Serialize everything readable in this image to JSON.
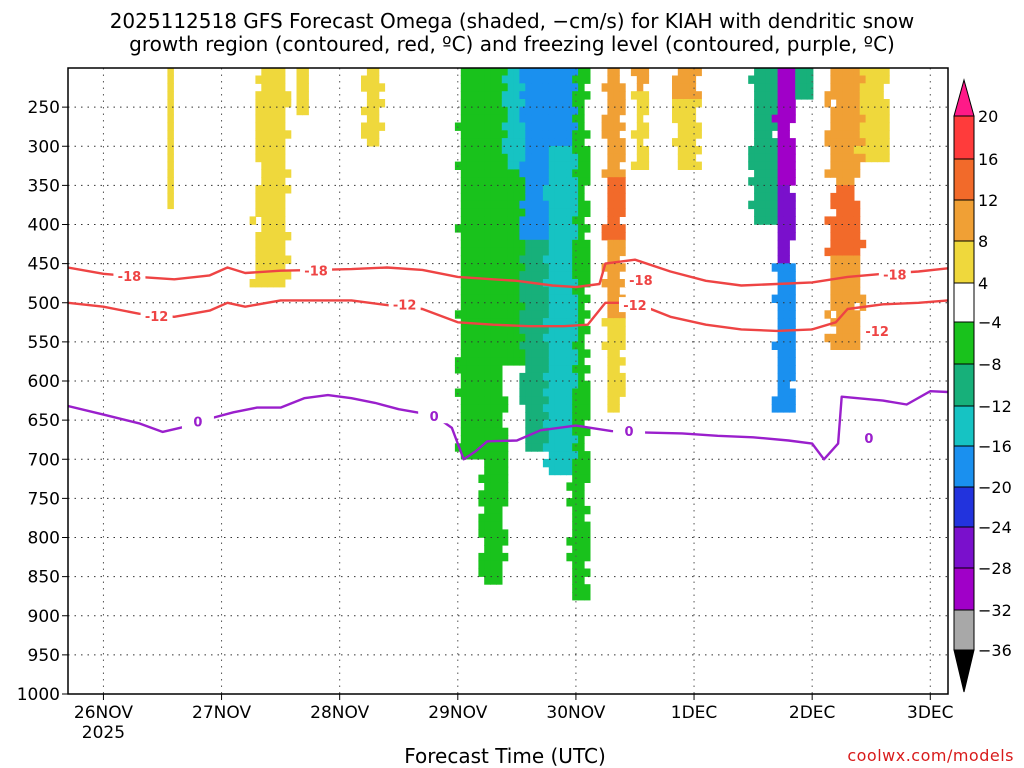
{
  "chart_data": {
    "type": "heatmap",
    "title_line1": "2025112518 GFS Forecast Omega (shaded, −cm/s) for KIAH with dendritic snow",
    "title_line2": "growth region (contoured, red, ºC) and freezing level (contoured, purple, ºC)",
    "xlabel": "Forecast Time (UTC)",
    "credit": "coolwx.com/models",
    "y_axis": {
      "unit": "hPa",
      "reversed": true,
      "range": [
        200,
        1000
      ],
      "ticks": [
        250,
        300,
        350,
        400,
        450,
        500,
        550,
        600,
        650,
        700,
        750,
        800,
        850,
        900,
        950,
        1000
      ]
    },
    "x_axis": {
      "unit": "day",
      "range": [
        -0.3,
        7.15
      ],
      "ticks": [
        {
          "v": 0,
          "label": "26NOV",
          "sub": "2025"
        },
        {
          "v": 1,
          "label": "27NOV"
        },
        {
          "v": 2,
          "label": "28NOV"
        },
        {
          "v": 3,
          "label": "29NOV"
        },
        {
          "v": 4,
          "label": "30NOV"
        },
        {
          "v": 5,
          "label": "1DEC"
        },
        {
          "v": 6,
          "label": "2DEC"
        },
        {
          "v": 7,
          "label": "3DEC"
        }
      ]
    },
    "colorbar": {
      "labels": [
        "20",
        "16",
        "12",
        "8",
        "4",
        "−4",
        "−8",
        "−12",
        "−16",
        "−20",
        "−24",
        "−28",
        "−32",
        "−36"
      ],
      "colors": [
        "#ff1a88",
        "#ff3b3b",
        "#f26a2a",
        "#f0a035",
        "#efd83c",
        "#ffffff",
        "#19c21c",
        "#17b07a",
        "#16c3c3",
        "#1a90ef",
        "#2233dd",
        "#7a10cc",
        "#a000c8",
        "#a8a8a8",
        "#000000"
      ]
    },
    "contour_labels": {
      "dgz_upper": "-18",
      "dgz_lower": "-12",
      "freezing": "0"
    },
    "series": [
      {
        "name": "-18C isotherm",
        "color": "#ee4444",
        "points": [
          [
            -0.3,
            455
          ],
          [
            0,
            463
          ],
          [
            0.3,
            467
          ],
          [
            0.6,
            470
          ],
          [
            0.9,
            465
          ],
          [
            1.05,
            455
          ],
          [
            1.2,
            462
          ],
          [
            1.5,
            459
          ],
          [
            1.8,
            458
          ],
          [
            2.1,
            457
          ],
          [
            2.4,
            455
          ],
          [
            2.7,
            458
          ],
          [
            3.0,
            467
          ],
          [
            3.3,
            470
          ],
          [
            3.5,
            472
          ],
          [
            3.8,
            478
          ],
          [
            4.0,
            480
          ],
          [
            4.2,
            476
          ],
          [
            4.25,
            450
          ],
          [
            4.5,
            445
          ],
          [
            4.8,
            460
          ],
          [
            5.1,
            472
          ],
          [
            5.4,
            478
          ],
          [
            5.7,
            476
          ],
          [
            6.0,
            474
          ],
          [
            6.3,
            467
          ],
          [
            6.6,
            463
          ],
          [
            6.9,
            460
          ],
          [
            7.15,
            456
          ]
        ]
      },
      {
        "name": "-12C isotherm",
        "color": "#ee4444",
        "points": [
          [
            -0.3,
            500
          ],
          [
            0,
            505
          ],
          [
            0.3,
            514
          ],
          [
            0.6,
            518
          ],
          [
            0.9,
            510
          ],
          [
            1.05,
            500
          ],
          [
            1.2,
            505
          ],
          [
            1.5,
            497
          ],
          [
            1.8,
            497
          ],
          [
            2.1,
            497
          ],
          [
            2.4,
            503
          ],
          [
            2.7,
            508
          ],
          [
            3.0,
            525
          ],
          [
            3.3,
            528
          ],
          [
            3.6,
            530
          ],
          [
            3.9,
            530
          ],
          [
            4.1,
            528
          ],
          [
            4.25,
            500
          ],
          [
            4.5,
            500
          ],
          [
            4.8,
            518
          ],
          [
            5.1,
            528
          ],
          [
            5.4,
            534
          ],
          [
            5.7,
            536
          ],
          [
            6.0,
            534
          ],
          [
            6.2,
            525
          ],
          [
            6.3,
            508
          ],
          [
            6.6,
            502
          ],
          [
            6.9,
            500
          ],
          [
            7.15,
            497
          ]
        ]
      },
      {
        "name": "0C freezing level",
        "color": "#9a1fcc",
        "points": [
          [
            -0.3,
            632
          ],
          [
            0,
            643
          ],
          [
            0.3,
            654
          ],
          [
            0.5,
            665
          ],
          [
            0.7,
            658
          ],
          [
            0.9,
            648
          ],
          [
            1.1,
            640
          ],
          [
            1.3,
            634
          ],
          [
            1.5,
            634
          ],
          [
            1.7,
            622
          ],
          [
            1.9,
            618
          ],
          [
            2.1,
            622
          ],
          [
            2.3,
            628
          ],
          [
            2.5,
            636
          ],
          [
            2.8,
            644
          ],
          [
            2.95,
            660
          ],
          [
            3.05,
            700
          ],
          [
            3.15,
            690
          ],
          [
            3.25,
            677
          ],
          [
            3.5,
            676
          ],
          [
            3.7,
            663
          ],
          [
            4.0,
            657
          ],
          [
            4.3,
            664
          ],
          [
            4.6,
            666
          ],
          [
            4.9,
            667
          ],
          [
            5.2,
            670
          ],
          [
            5.5,
            672
          ],
          [
            5.8,
            676
          ],
          [
            6.0,
            680
          ],
          [
            6.1,
            700
          ],
          [
            6.22,
            680
          ],
          [
            6.25,
            620
          ],
          [
            6.6,
            625
          ],
          [
            6.8,
            630
          ],
          [
            7.0,
            613
          ],
          [
            7.15,
            614
          ]
        ]
      }
    ]
  }
}
